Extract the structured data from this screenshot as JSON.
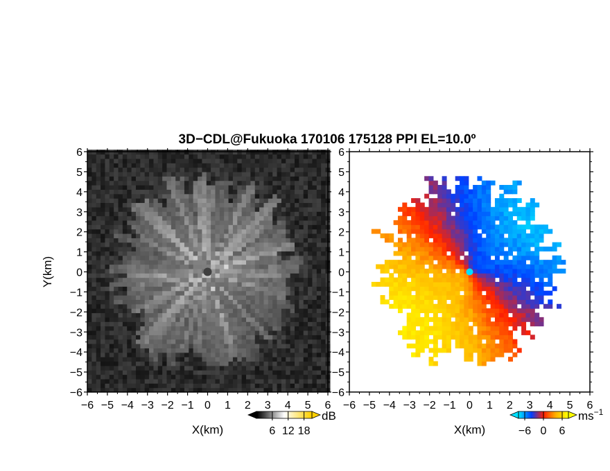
{
  "title": "3D−CDL@Fukuoka 170106 175128 PPI EL=10.0º",
  "chart_data": [
    {
      "panel": "left",
      "type": "heatmap",
      "variable": "echo intensity",
      "xlabel": "X(km)",
      "ylabel": "Y(km)",
      "xlim": [
        -6,
        6
      ],
      "ylim": [
        -6,
        6
      ],
      "ticks": [
        -6,
        -5,
        -4,
        -3,
        -2,
        -1,
        0,
        1,
        2,
        3,
        4,
        5,
        6
      ],
      "tick_labels": [
        "−6",
        "−5",
        "−4",
        "−3",
        "−2",
        "−1",
        "0",
        "1",
        "2",
        "3",
        "4",
        "5",
        "6"
      ],
      "data_radius_km": 5.2,
      "colorbar": {
        "unit": "dB",
        "ticks": [
          6,
          12,
          18
        ],
        "range": [
          0,
          21
        ],
        "colors": [
          "#000000",
          "#ffffff",
          "#ffd000"
        ]
      }
    },
    {
      "panel": "right",
      "type": "heatmap",
      "variable": "Doppler velocity",
      "xlabel": "X(km)",
      "ylabel": "",
      "xlim": [
        -6,
        6
      ],
      "ylim": [
        -6,
        6
      ],
      "ticks": [
        -6,
        -5,
        -4,
        -3,
        -2,
        -1,
        0,
        1,
        2,
        3,
        4,
        5,
        6
      ],
      "tick_labels": [
        "−6",
        "−5",
        "−4",
        "−3",
        "−2",
        "−1",
        "0",
        "1",
        "2",
        "3",
        "4",
        "5",
        "6"
      ],
      "data_radius_km": 5.2,
      "colorbar": {
        "unit": "ms",
        "unit_exponent": "−1",
        "ticks": [
          -6,
          0,
          6
        ],
        "tick_labels": [
          "−6",
          "0",
          "6"
        ],
        "range": [
          -8,
          8
        ],
        "colors": [
          "#00e0ff",
          "#0040ff",
          "#ff2000",
          "#ffb000",
          "#ffff00"
        ]
      }
    }
  ]
}
